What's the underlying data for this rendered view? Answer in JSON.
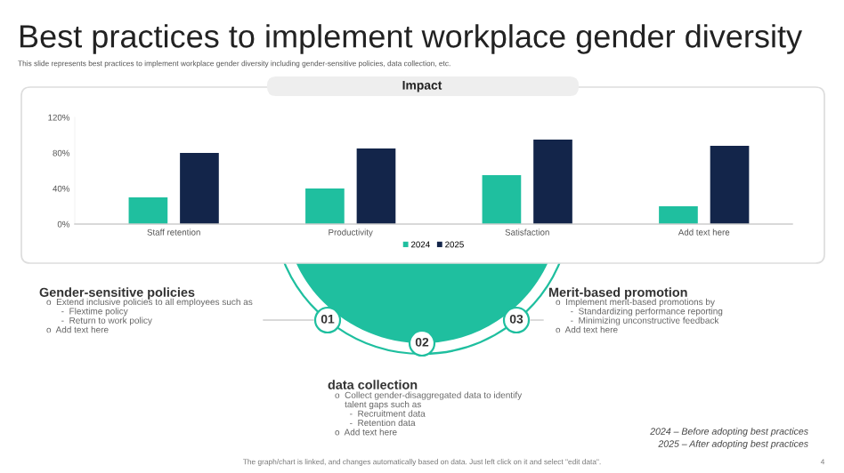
{
  "chart_data": {
    "type": "bar",
    "title": "Best practices to implement workplace gender diversity",
    "subtitle": "This slide represents best practices to implement workplace gender diversity including gender-sensitive policies, data collection, etc.",
    "categories": [
      "Staff retention",
      "Productivity",
      "Satisfaction",
      "Add text here"
    ],
    "series": [
      {
        "name": "2024",
        "color": "#1fbf9f",
        "values": [
          30,
          40,
          55,
          20
        ]
      },
      {
        "name": "2025",
        "color": "#13254a",
        "values": [
          80,
          85,
          95,
          88
        ]
      }
    ],
    "ylim": [
      0,
      120
    ],
    "yticks": [
      {
        "value": 0,
        "label": "0%"
      },
      {
        "value": 40,
        "label": "40%"
      },
      {
        "value": 80,
        "label": "80%"
      },
      {
        "value": 120,
        "label": "120%"
      }
    ],
    "legend": "bottom",
    "annotations": [
      "Impact",
      "Gender-sensitive policies",
      "o  Extend inclusive policies to all employees such as\n      -  Flextime policy\n      -  Return to work policy\no  Add text here",
      "Merit-based promotion",
      "o  Implement merit-based promotions by\n      -  Standardizing performance reporting\n      -  Minimizing unconstructive feedback\no  Add text here",
      "data collection",
      "o  Collect gender-disaggregated data to identify\n    talent gaps such as\n      -  Recruitment data\n      -  Retention data\no  Add text here",
      "01",
      "02",
      "03",
      "2024 – Before adopting best practices",
      "2025 – After adopting best practices",
      "The graph/chart is linked, and changes automatically based on data. Just left click on it and select \"edit data\".",
      "4"
    ]
  }
}
